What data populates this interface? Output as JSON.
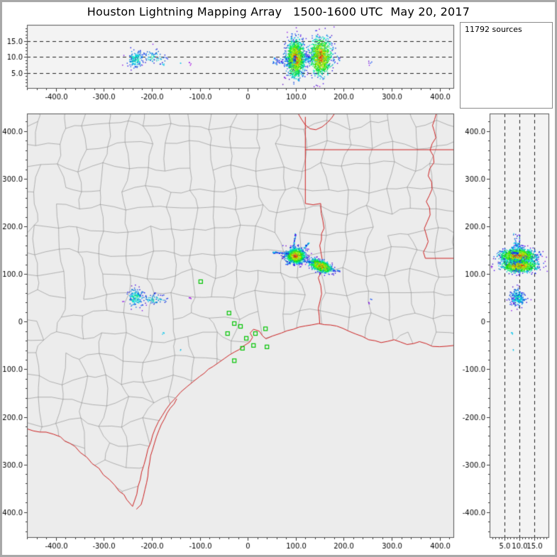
{
  "title": "Houston Lightning Mapping Array   1500-1600 UTC  May 20, 2017",
  "sources_label": "11792 sources",
  "source_count": 11792,
  "colors": {
    "border_red": "#cc2020",
    "county_gray": "#8a8a8a",
    "sensor_green": "#00c400",
    "land": "#ececec",
    "panel_bg": "#f3f3f3",
    "frame_gray": "#555555",
    "dash_black": "#222222",
    "outer_frame": "#a8a8a8",
    "tick_text": "#000000"
  },
  "chart_data": {
    "type": "scatter",
    "title": "Houston Lightning Mapping Array",
    "time_range": "1500-1600 UTC",
    "date": "May 20, 2017",
    "layout": "XLMA-style lightning source plot: top panel = altitude (km) vs east-west distance (km); main panel = plan view map with county and state borders; right panel = altitude (km) vs north-south distance (km); grid off, dashed altitude reference lines at 5, 10 and 15 km",
    "axes": {
      "x_range": [
        -460,
        430
      ],
      "y_range": [
        -454,
        437
      ],
      "alt_range": [
        0,
        20
      ],
      "x_ticks": [
        -400,
        -300,
        -200,
        -100,
        0,
        100,
        200,
        300,
        400
      ],
      "x_tick_labels": [
        "-400.0",
        "-300.0",
        "-200.0",
        "-100.0",
        "0",
        "100.0",
        "200.0",
        "300.0",
        "400.0"
      ],
      "y_ticks": [
        400,
        300,
        200,
        100,
        0,
        -100,
        -200,
        -300,
        -400
      ],
      "y_tick_labels": [
        "400.0",
        "300.0",
        "200.0",
        "100.0",
        "0",
        "-100.0",
        "-200.0",
        "-300.0",
        "-400.0"
      ],
      "alt_ticks": [
        5,
        10,
        15
      ],
      "alt_tick_labels": [
        "5.0",
        "10.0",
        "15.0"
      ],
      "minor_step_km": 20,
      "minor_step_alt": 1,
      "dashed_alt_lines": [
        5,
        10,
        15
      ]
    },
    "clusters": [
      {
        "name": "storm-west-cell",
        "center": [
          100,
          138,
          9.5
        ],
        "sigma": [
          9,
          7,
          2.8
        ],
        "tilt": 0,
        "count": 1500,
        "hue_min": -5,
        "hue_max": 265
      },
      {
        "name": "storm-east-cell",
        "center": [
          152,
          117,
          10
        ],
        "sigma": [
          11,
          5.5,
          2.9
        ],
        "tilt": -0.3,
        "count": 1050,
        "hue_min": -5,
        "hue_max": 265
      },
      {
        "name": "weak-cell-west",
        "center": [
          -233,
          50,
          9.3
        ],
        "sigma": [
          9,
          9,
          1.3
        ],
        "tilt": 0,
        "count": 170,
        "hue_min": 140,
        "hue_max": 270
      },
      {
        "name": "weak-cell-west-2",
        "center": [
          -196,
          47,
          9.8
        ],
        "sigma": [
          13,
          5,
          1.1
        ],
        "tilt": 0,
        "count": 70,
        "hue_min": 150,
        "hue_max": 270
      }
    ],
    "streaks": [
      {
        "from": [
          53,
          145
        ],
        "to": [
          85,
          143
        ],
        "alt": 8.5,
        "count": 50,
        "hue_min": 175,
        "hue_max": 255
      },
      {
        "from": [
          95,
          155
        ],
        "to": [
          100,
          185
        ],
        "alt": 9,
        "count": 32,
        "hue_min": 175,
        "hue_max": 255
      },
      {
        "from": [
          113,
          150
        ],
        "to": [
          128,
          165
        ],
        "alt": 10,
        "count": 26,
        "hue_min": 170,
        "hue_max": 250
      },
      {
        "from": [
          115,
          130
        ],
        "to": [
          140,
          122
        ],
        "alt": 9.5,
        "count": 20,
        "hue_min": 180,
        "hue_max": 260
      },
      {
        "from": [
          170,
          110
        ],
        "to": [
          192,
          106
        ],
        "alt": 9,
        "count": 15,
        "hue_min": 190,
        "hue_max": 260
      },
      {
        "from": [
          78,
          118
        ],
        "to": [
          95,
          128
        ],
        "alt": 8,
        "count": 18,
        "hue_min": 175,
        "hue_max": 255
      }
    ],
    "singles": [
      {
        "pos": [
          -120,
          50,
          7.5
        ],
        "spread": 4,
        "count": 4,
        "hue": 278
      },
      {
        "pos": [
          -176,
          -25,
          8
        ],
        "spread": 4,
        "count": 4,
        "hue": 190
      },
      {
        "pos": [
          253,
          40,
          8
        ],
        "spread": 5,
        "count": 3,
        "hue": 268
      },
      {
        "pos": [
          257,
          47,
          8.5
        ],
        "spread": 3,
        "count": 2,
        "hue": 230
      },
      {
        "pos": [
          -140,
          -60,
          8
        ],
        "spread": 3,
        "count": 2,
        "hue": 195
      }
    ],
    "sensors": [
      [
        -98,
        84
      ],
      [
        -39,
        18
      ],
      [
        -28,
        -4
      ],
      [
        -42,
        -25
      ],
      [
        -15,
        -10
      ],
      [
        -3,
        -35
      ],
      [
        -11,
        -56
      ],
      [
        12,
        -50
      ],
      [
        16,
        -25
      ],
      [
        37,
        -15
      ],
      [
        40,
        -53
      ],
      [
        -28,
        -82
      ]
    ],
    "map": {
      "county_grid": {
        "spacing_x": 31,
        "spacing_y": 30,
        "jitter": 16,
        "skip": 0.07,
        "seed": 12345
      },
      "borders": {
        "rio_grande": [
          [
            -460,
            -225
          ],
          [
            -420,
            -232
          ],
          [
            -390,
            -242
          ],
          [
            -360,
            -262
          ],
          [
            -335,
            -285
          ],
          [
            -310,
            -308
          ],
          [
            -288,
            -332
          ],
          [
            -268,
            -356
          ],
          [
            -252,
            -374
          ],
          [
            -240,
            -388
          ]
        ],
        "coast": [
          [
            -240,
            -388
          ],
          [
            -231,
            -362
          ],
          [
            -224,
            -332
          ],
          [
            -216,
            -300
          ],
          [
            -208,
            -268
          ],
          [
            -198,
            -238
          ],
          [
            -186,
            -210
          ],
          [
            -170,
            -184
          ],
          [
            -150,
            -160
          ],
          [
            -127,
            -137
          ],
          [
            -100,
            -115
          ],
          [
            -72,
            -94
          ],
          [
            -48,
            -77
          ],
          [
            -28,
            -64
          ],
          [
            -10,
            -52
          ],
          [
            4,
            -43
          ],
          [
            10,
            -33
          ],
          [
            5,
            -24
          ],
          [
            12,
            -16
          ],
          [
            24,
            -20
          ],
          [
            31,
            -30
          ],
          [
            38,
            -36
          ],
          [
            52,
            -30
          ],
          [
            70,
            -24
          ],
          [
            95,
            -16
          ],
          [
            120,
            -9
          ],
          [
            148,
            -4
          ],
          [
            172,
            -7
          ],
          [
            198,
            -14
          ],
          [
            225,
            -26
          ],
          [
            252,
            -38
          ],
          [
            278,
            -44
          ],
          [
            305,
            -38
          ],
          [
            332,
            -48
          ],
          [
            358,
            -42
          ],
          [
            385,
            -52
          ],
          [
            430,
            -50
          ]
        ],
        "barrier_island": [
          [
            -148,
            -162
          ],
          [
            -168,
            -192
          ],
          [
            -185,
            -228
          ],
          [
            -198,
            -268
          ],
          [
            -207,
            -310
          ],
          [
            -214,
            -352
          ],
          [
            -222,
            -384
          ],
          [
            -232,
            -394
          ]
        ],
        "sabine_river": [
          [
            150,
            -4
          ],
          [
            147,
            28
          ],
          [
            154,
            58
          ],
          [
            147,
            92
          ],
          [
            156,
            126
          ],
          [
            150,
            160
          ],
          [
            159,
            196
          ],
          [
            153,
            228
          ],
          [
            152,
            248
          ],
          [
            120,
            248
          ]
        ],
        "tx_ar_vertical": [
          [
            120,
            248
          ],
          [
            120,
            430
          ]
        ],
        "ar_la_line": [
          [
            120,
            361
          ],
          [
            430,
            361
          ]
        ],
        "red_river": [
          [
            105,
            437
          ],
          [
            112,
            425
          ],
          [
            120,
            413
          ],
          [
            130,
            405
          ],
          [
            142,
            403
          ],
          [
            155,
            409
          ],
          [
            166,
            418
          ],
          [
            175,
            428
          ],
          [
            181,
            437
          ]
        ],
        "mississippi_river": [
          [
            393,
            437
          ],
          [
            385,
            412
          ],
          [
            392,
            386
          ],
          [
            380,
            360
          ],
          [
            388,
            334
          ],
          [
            376,
            306
          ],
          [
            384,
            278
          ],
          [
            372,
            252
          ],
          [
            380,
            224
          ],
          [
            368,
            196
          ],
          [
            376,
            168
          ],
          [
            366,
            146
          ],
          [
            370,
            133
          ]
        ],
        "la_ms_line": [
          [
            370,
            133
          ],
          [
            430,
            133
          ]
        ]
      }
    }
  }
}
